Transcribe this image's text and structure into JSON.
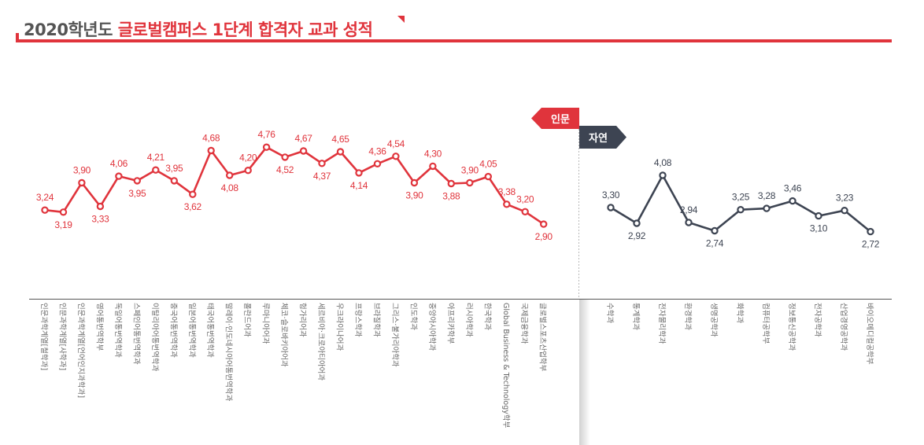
{
  "title": {
    "prefix": "2020학년도",
    "accent": "글로벌캠퍼스 1단계 합격자 교과 성적"
  },
  "colors": {
    "humanities": "#e0343c",
    "natural": "#3d4452",
    "title_gray": "#555555",
    "accent_red": "#e0343c"
  },
  "chart_data": {
    "type": "line",
    "series": [
      {
        "name": "인문",
        "categories": [
          "인문과학계열[철학과]",
          "인문과학계열[사학과]",
          "인문과학계열[언어인지과학과]",
          "영어통번역학부",
          "독일어통번역학과",
          "스페인어통번역학과",
          "이탈리아어통번역학과",
          "중국어통번역학과",
          "일본어통번역학과",
          "태국어통번역학과",
          "말레이·인도네시아어통번역학과",
          "폴란드어과",
          "루마니아어과",
          "체코·슬로바키아어과",
          "헝가리어과",
          "세르비아·크로아티아어과",
          "우크라이나어과",
          "프랑스학과",
          "브라질학과",
          "그리스·불가리아학과",
          "인도학과",
          "중앙아시아학과",
          "아프리카학부",
          "러시아학과",
          "한국학과",
          "Global Business & Technology학부",
          "국제금융학과",
          "글로벌스포츠산업학부"
        ],
        "values": [
          3.24,
          3.19,
          3.9,
          3.33,
          4.06,
          3.95,
          4.21,
          3.95,
          3.62,
          4.68,
          4.08,
          4.2,
          4.76,
          4.52,
          4.67,
          4.37,
          4.65,
          4.14,
          4.36,
          4.54,
          3.9,
          4.3,
          3.88,
          3.9,
          4.05,
          3.38,
          3.2,
          2.9
        ],
        "labels": [
          "3.24",
          "3.19",
          "3.90",
          "3.33",
          "4.06",
          "3.95",
          "4.21",
          "3.95",
          "3.62",
          "4.68",
          "4.08",
          "4.20",
          "4.76",
          "4.52",
          "4.67",
          "4.37",
          "4.65",
          "4.14",
          "4.36",
          "4.54",
          "3.90",
          "4.30",
          "3.88",
          "3.90",
          "4.05",
          "3.38",
          "3.20",
          "2.90"
        ]
      },
      {
        "name": "자연",
        "categories": [
          "수학과",
          "통계학과",
          "전자물리학과",
          "환경학과",
          "생명공학과",
          "화학과",
          "컴퓨터공학부",
          "정보통신공학과",
          "전자공학과",
          "산업경영공학과",
          "바이오메디컬공학부"
        ],
        "values": [
          3.3,
          2.92,
          4.08,
          2.94,
          2.74,
          3.25,
          3.28,
          3.46,
          3.1,
          3.23,
          2.72
        ],
        "labels": [
          "3.30",
          "2.92",
          "4.08",
          "2.94",
          "2.74",
          "3.25",
          "3.28",
          "3.46",
          "3.10",
          "3.23",
          "2.72"
        ]
      }
    ],
    "grid": false
  }
}
